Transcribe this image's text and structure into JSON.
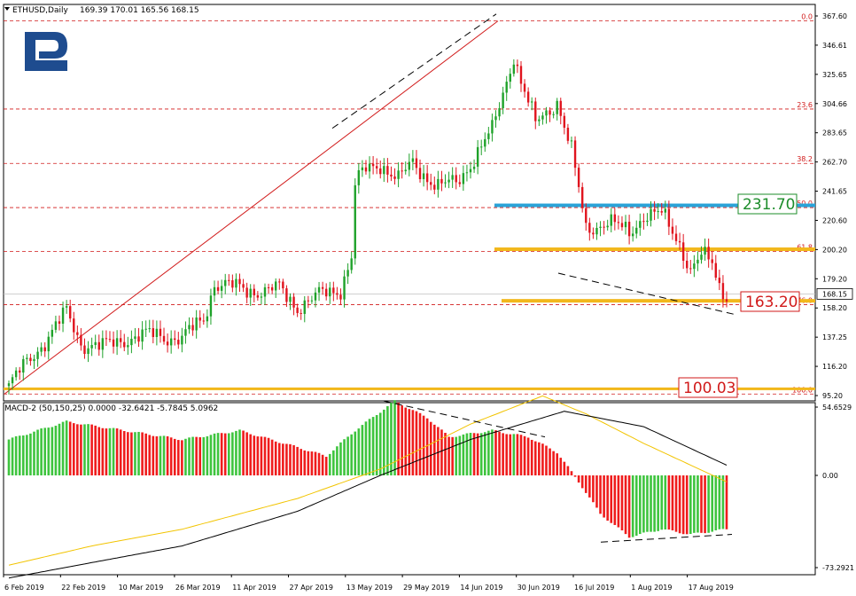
{
  "header": {
    "symbol": "ETHUSD,Daily",
    "ohlc": "169.39 170.01 165.56 168.15"
  },
  "macd_header": "MACD-2 (50,150,25) 0.0000 -32.6421 -5.7845 5.0962",
  "logo": "R",
  "colors": {
    "bull": "#1fa22a",
    "bear": "#e0141e",
    "hist_bull": "#3ec43e",
    "hist_bear": "#ef1c1c",
    "fib": "#d11a1a",
    "blue_band": "#2aa3d8",
    "orange_band": "#f2b81c",
    "signal": "#f2c400",
    "macd_line": "#000000",
    "logo": "#1e4c8f"
  },
  "price_ticks": [
    "367.60",
    "346.61",
    "325.65",
    "304.66",
    "283.65",
    "262.70",
    "241.65",
    "220.60",
    "200.20",
    "179.20",
    "158.20",
    "137.25",
    "116.20",
    "95.20"
  ],
  "macd_ticks": [
    "54.6529",
    "0.00",
    "-73.2921"
  ],
  "date_ticks": [
    "6 Feb 2019",
    "22 Feb 2019",
    "10 Mar 2019",
    "26 Mar 2019",
    "11 Apr 2019",
    "27 Apr 2019",
    "13 May 2019",
    "29 May 2019",
    "14 Jun 2019",
    "30 Jun 2019",
    "16 Jul 2019",
    "1 Aug 2019",
    "17 Aug 2019"
  ],
  "fib_levels": [
    {
      "label": "0.0",
      "price": 364.0
    },
    {
      "label": "23.6",
      "price": 300.8
    },
    {
      "label": "38.2",
      "price": 261.8
    },
    {
      "label": "50.0",
      "price": 230.1
    },
    {
      "label": "61.8",
      "price": 198.6
    },
    {
      "label": "76.0",
      "price": 160.4
    },
    {
      "label": "100.0",
      "price": 96.3
    }
  ],
  "annotations": [
    {
      "text": "231.70",
      "price": 231.7,
      "color": "#1c8c2a"
    },
    {
      "text": "163.20",
      "price": 163.2,
      "color": "#d11a1a"
    },
    {
      "text": "100.03",
      "price": 100.03,
      "color": "#d11a1a"
    }
  ],
  "current_price": "168.15",
  "chart_data": {
    "type": "candlestick",
    "title": "ETHUSD,Daily",
    "ylim": [
      95.2,
      367.6
    ],
    "x_range": [
      "6 Feb 2019",
      "24 Aug 2019"
    ],
    "grid": false,
    "series": [
      {
        "name": "ETHUSD",
        "type": "candlestick",
        "anchors": [
          [
            "6 Feb 2019",
            102
          ],
          [
            "12 Feb 2019",
            122
          ],
          [
            "18 Feb 2019",
            141
          ],
          [
            "22 Feb 2019",
            155
          ],
          [
            "26 Feb 2019",
            133
          ],
          [
            "4 Mar 2019",
            130
          ],
          [
            "10 Mar 2019",
            136
          ],
          [
            "18 Mar 2019",
            139
          ],
          [
            "26 Mar 2019",
            136
          ],
          [
            "1 Apr 2019",
            150
          ],
          [
            "4 Apr 2019",
            176
          ],
          [
            "11 Apr 2019",
            172
          ],
          [
            "18 Apr 2019",
            170
          ],
          [
            "22 Apr 2019",
            172
          ],
          [
            "27 Apr 2019",
            159
          ],
          [
            "4 May 2019",
            168
          ],
          [
            "9 May 2019",
            172
          ],
          [
            "12 May 2019",
            195
          ],
          [
            "13 May 2019",
            245
          ],
          [
            "15 May 2019",
            255
          ],
          [
            "20 May 2019",
            262
          ],
          [
            "25 May 2019",
            250
          ],
          [
            "29 May 2019",
            262
          ],
          [
            "5 Jun 2019",
            245
          ],
          [
            "10 Jun 2019",
            248
          ],
          [
            "14 Jun 2019",
            262
          ],
          [
            "20 Jun 2019",
            285
          ],
          [
            "26 Jun 2019",
            340
          ],
          [
            "28 Jun 2019",
            320
          ],
          [
            "2 Jul 2019",
            290
          ],
          [
            "8 Jul 2019",
            307
          ],
          [
            "12 Jul 2019",
            270
          ],
          [
            "16 Jul 2019",
            215
          ],
          [
            "22 Jul 2019",
            220
          ],
          [
            "28 Jul 2019",
            212
          ],
          [
            "1 Aug 2019",
            225
          ],
          [
            "6 Aug 2019",
            225
          ],
          [
            "11 Aug 2019",
            205
          ],
          [
            "14 Aug 2019",
            185
          ],
          [
            "17 Aug 2019",
            195
          ],
          [
            "20 Aug 2019",
            190
          ],
          [
            "22 Aug 2019",
            174
          ],
          [
            "24 Aug 2019",
            168
          ]
        ]
      },
      {
        "name": "MACD-2 histogram",
        "type": "histogram",
        "anchors": [
          [
            "6 Feb 2019",
            28
          ],
          [
            "22 Feb 2019",
            42
          ],
          [
            "10 Mar 2019",
            35
          ],
          [
            "26 Mar 2019",
            28
          ],
          [
            "11 Apr 2019",
            35
          ],
          [
            "27 Apr 2019",
            22
          ],
          [
            "5 May 2019",
            15
          ],
          [
            "13 May 2019",
            35
          ],
          [
            "24 May 2019",
            58
          ],
          [
            "2 Jun 2019",
            45
          ],
          [
            "8 Jun 2019",
            30
          ],
          [
            "20 Jun 2019",
            35
          ],
          [
            "30 Jun 2019",
            30
          ],
          [
            "8 Jul 2019",
            18
          ],
          [
            "14 Jul 2019",
            -5
          ],
          [
            "20 Jul 2019",
            -30
          ],
          [
            "28 Jul 2019",
            -48
          ],
          [
            "6 Aug 2019",
            -42
          ],
          [
            "14 Aug 2019",
            -46
          ],
          [
            "24 Aug 2019",
            -42
          ]
        ]
      },
      {
        "name": "MACD-2 signal",
        "type": "line",
        "anchors": [
          [
            "6 Feb 2019",
            -70
          ],
          [
            "1 Mar 2019",
            -55
          ],
          [
            "26 Mar 2019",
            -42
          ],
          [
            "27 Apr 2019",
            -18
          ],
          [
            "20 May 2019",
            5
          ],
          [
            "14 Jun 2019",
            40
          ],
          [
            "4 Jul 2019",
            62
          ],
          [
            "16 Jul 2019",
            48
          ],
          [
            "1 Aug 2019",
            25
          ],
          [
            "24 Aug 2019",
            -5
          ]
        ]
      },
      {
        "name": "MACD-2 line",
        "type": "line",
        "anchors": [
          [
            "6 Feb 2019",
            -80
          ],
          [
            "1 Mar 2019",
            -68
          ],
          [
            "26 Mar 2019",
            -55
          ],
          [
            "27 Apr 2019",
            -28
          ],
          [
            "20 May 2019",
            0
          ],
          [
            "14 Jun 2019",
            28
          ],
          [
            "10 Jul 2019",
            50
          ],
          [
            "1 Aug 2019",
            38
          ],
          [
            "24 Aug 2019",
            8
          ]
        ]
      }
    ]
  }
}
